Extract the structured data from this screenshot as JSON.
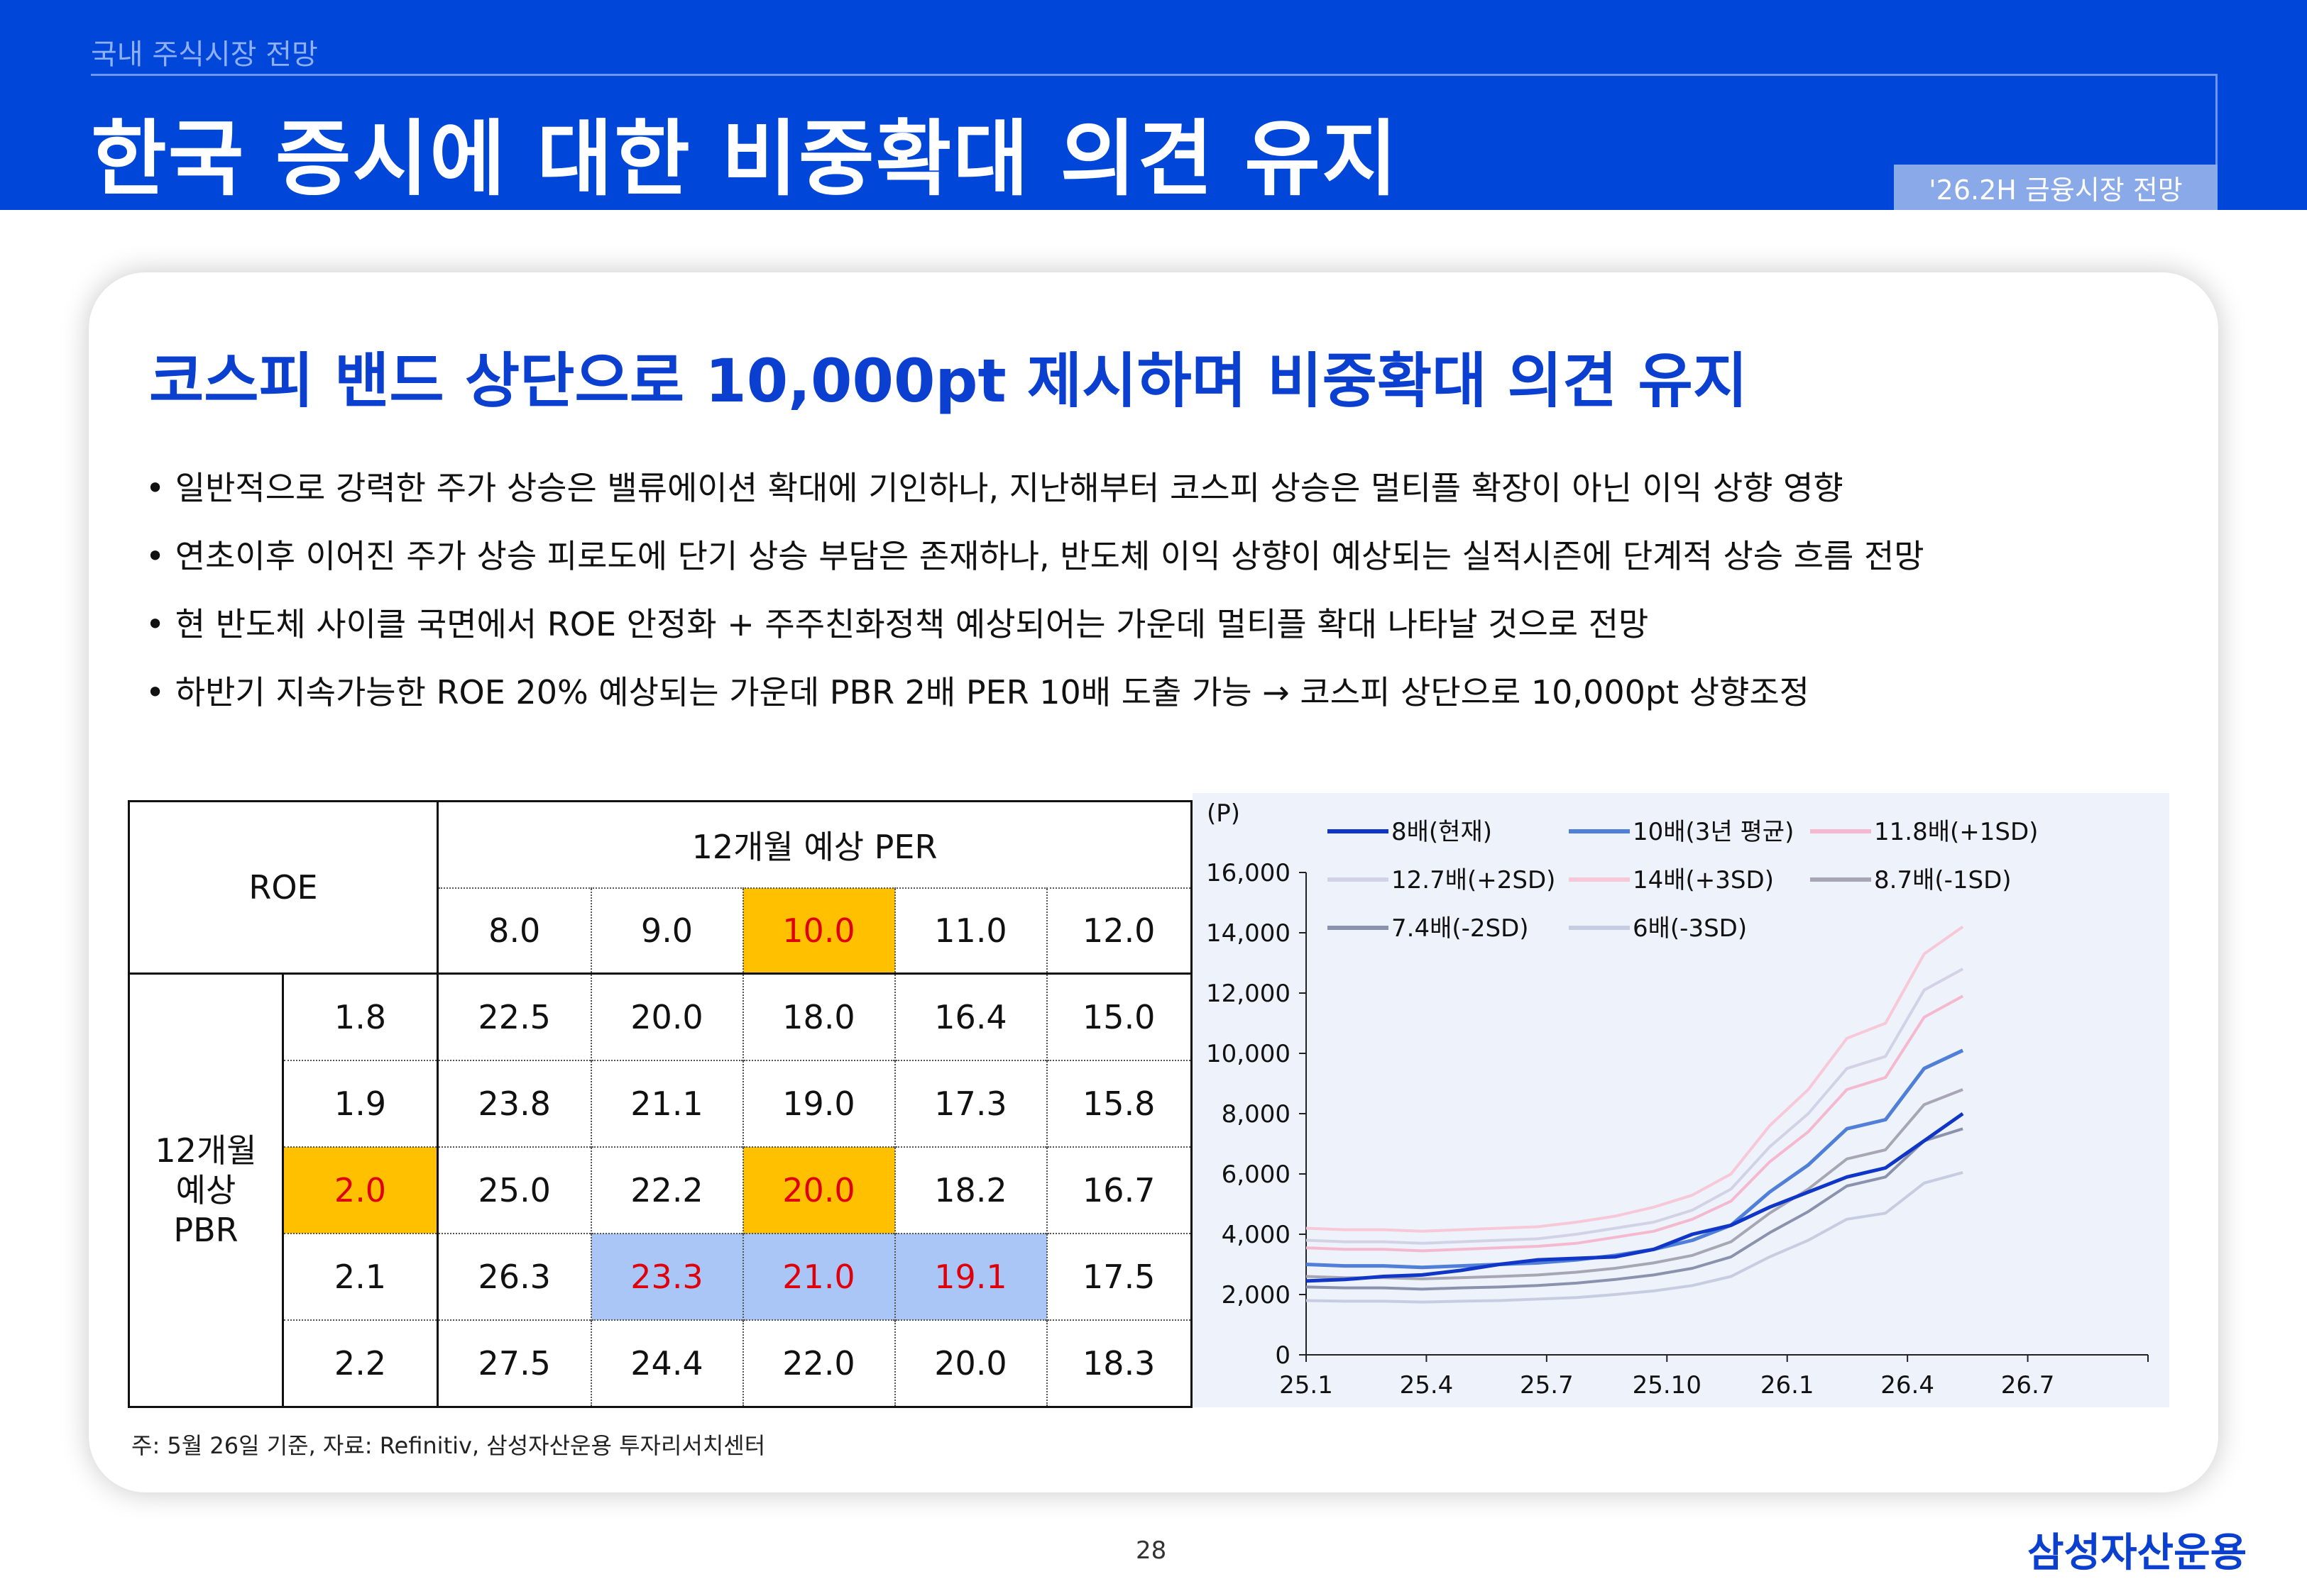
{
  "header": {
    "breadcrumb": "국내 주식시장 전망",
    "title": "한국 증시에 대한 비중확대 의견 유지",
    "badge": "'26.2H 금융시장 전망"
  },
  "section_title": "코스피 밴드 상단으로 10,000pt 제시하며 비중확대 의견 유지",
  "bullets": [
    "일반적으로 강력한 주가 상승은 밸류에이션 확대에 기인하나, 지난해부터 코스피 상승은 멀티플 확장이 아닌 이익 상향 영향",
    "연초이후 이어진 주가 상승 피로도에 단기 상승 부담은 존재하나, 반도체 이익 상향이 예상되는 실적시즌에 단계적 상승 흐름 전망",
    "현 반도체 사이클 국면에서 ROE 안정화 + 주주친화정책 예상되어는 가운데 멀티플 확대 나타날 것으로 전망",
    "하반기 지속가능한 ROE 20% 예상되는 가운데 PBR 2배  PER  10배 도출 가능 → 코스피 상단으로 10,000pt 상향조정"
  ],
  "table": {
    "roe_label": "ROE",
    "per_header": "12개월 예상 PER",
    "pbr_header": "12개월 예상 PBR",
    "per_values": [
      "8.0",
      "9.0",
      "10.0",
      "11.0",
      "12.0"
    ],
    "rows": [
      {
        "pbr": "1.8",
        "cells": [
          "22.5",
          "20.0",
          "18.0",
          "16.4",
          "15.0"
        ]
      },
      {
        "pbr": "1.9",
        "cells": [
          "23.8",
          "21.1",
          "19.0",
          "17.3",
          "15.8"
        ]
      },
      {
        "pbr": "2.0",
        "cells": [
          "25.0",
          "22.2",
          "20.0",
          "18.2",
          "16.7"
        ]
      },
      {
        "pbr": "2.1",
        "cells": [
          "26.3",
          "23.3",
          "21.0",
          "19.1",
          "17.5"
        ]
      },
      {
        "pbr": "2.2",
        "cells": [
          "27.5",
          "24.4",
          "22.0",
          "20.0",
          "18.3"
        ]
      }
    ]
  },
  "chart_data": {
    "type": "line",
    "unit_label": "(P)",
    "ylim": [
      0,
      16000
    ],
    "yticks": [
      "16,000",
      "14,000",
      "12,000",
      "10,000",
      "8,000",
      "6,000",
      "4,000",
      "2,000",
      "0"
    ],
    "xticks": [
      "25.1",
      "25.4",
      "25.7",
      "25.10",
      "26.1",
      "26.4",
      "26.7"
    ],
    "legend_position": "top",
    "x": [
      0,
      1,
      2,
      3,
      4,
      5,
      6,
      7,
      8,
      9,
      10,
      11,
      12,
      13,
      14,
      15,
      16,
      17
    ],
    "series": [
      {
        "name": "8배(현재)",
        "color": "#1036c8",
        "width": 5,
        "values": [
          2450,
          2500,
          2600,
          2650,
          2800,
          3000,
          3150,
          3200,
          3250,
          3500,
          4000,
          4300,
          4900,
          5400,
          5900,
          6200,
          7100,
          8000
        ]
      },
      {
        "name": "10배(3년 평균)",
        "color": "#4f7fd8",
        "width": 5,
        "values": [
          3000,
          2950,
          2950,
          2900,
          2950,
          3000,
          3050,
          3150,
          3300,
          3500,
          3800,
          4300,
          5400,
          6300,
          7500,
          7800,
          9500,
          10100
        ]
      },
      {
        "name": "11.8배(+1SD)",
        "color": "#f5b9cf",
        "width": 4,
        "values": [
          3550,
          3500,
          3500,
          3450,
          3500,
          3550,
          3600,
          3700,
          3900,
          4100,
          4500,
          5100,
          6400,
          7400,
          8800,
          9200,
          11200,
          11900
        ]
      },
      {
        "name": "12.7배(+2SD)",
        "color": "#d2d2e6",
        "width": 4,
        "values": [
          3800,
          3750,
          3750,
          3700,
          3750,
          3800,
          3850,
          4000,
          4200,
          4400,
          4800,
          5500,
          6900,
          8000,
          9500,
          9900,
          12100,
          12800
        ]
      },
      {
        "name": "14배(+3SD)",
        "color": "#f7c8d8",
        "width": 4,
        "values": [
          4200,
          4150,
          4150,
          4100,
          4150,
          4200,
          4250,
          4400,
          4600,
          4900,
          5300,
          6000,
          7600,
          8800,
          10500,
          11000,
          13300,
          14200
        ]
      },
      {
        "name": "8.7배(-1SD)",
        "color": "#a6a6b4",
        "width": 4,
        "values": [
          2600,
          2560,
          2560,
          2520,
          2560,
          2600,
          2650,
          2740,
          2870,
          3050,
          3300,
          3750,
          4700,
          5500,
          6500,
          6800,
          8300,
          8800
        ]
      },
      {
        "name": "7.4배(-2SD)",
        "color": "#8a92ae",
        "width": 4,
        "values": [
          2250,
          2220,
          2220,
          2180,
          2220,
          2250,
          2300,
          2380,
          2500,
          2650,
          2870,
          3250,
          4050,
          4750,
          5600,
          5900,
          7100,
          7500
        ]
      },
      {
        "name": "6배(-3SD)",
        "color": "#c8cce0",
        "width": 4,
        "values": [
          1800,
          1780,
          1780,
          1750,
          1780,
          1800,
          1850,
          1900,
          2000,
          2120,
          2300,
          2600,
          3250,
          3800,
          4500,
          4700,
          5700,
          6050
        ]
      }
    ]
  },
  "source_note": "주: 5월 26일 기준, 자료: Refinitiv, 삼성자산운용 투자리서치센터",
  "page_number": "28",
  "brand": "삼성자산운용"
}
